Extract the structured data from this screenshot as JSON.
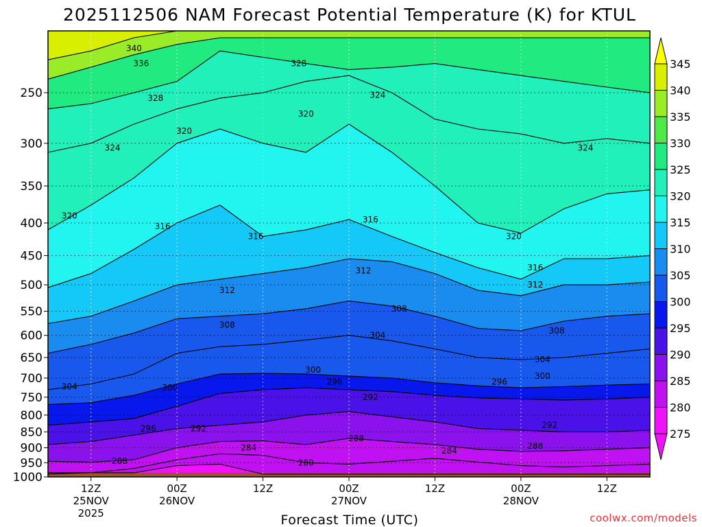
{
  "chart_data": {
    "type": "heatmap",
    "title": "2025112506 NAM Forecast Potential Temperature (K) for KTUL",
    "xlabel": "Forecast Time (UTC)",
    "ylabel": "",
    "credit": "coolwx.com/models",
    "y_axis": {
      "scale": "log-pressure",
      "range": [
        1000,
        200
      ],
      "ticks": [
        250,
        300,
        350,
        400,
        450,
        500,
        550,
        600,
        650,
        700,
        750,
        800,
        850,
        900,
        950,
        1000
      ],
      "grid": true
    },
    "x_axis": {
      "range_hours": [
        0,
        84
      ],
      "ticks": [
        {
          "hour": 6,
          "l1": "12Z",
          "l2": "25NOV",
          "l3": "2025"
        },
        {
          "hour": 18,
          "l1": "00Z",
          "l2": "26NOV",
          "l3": ""
        },
        {
          "hour": 30,
          "l1": "12Z",
          "l2": "",
          "l3": ""
        },
        {
          "hour": 42,
          "l1": "00Z",
          "l2": "27NOV",
          "l3": ""
        },
        {
          "hour": 54,
          "l1": "12Z",
          "l2": "",
          "l3": ""
        },
        {
          "hour": 66,
          "l1": "00Z",
          "l2": "28NOV",
          "l3": ""
        },
        {
          "hour": 78,
          "l1": "12Z",
          "l2": "",
          "l3": ""
        }
      ],
      "grid": true
    },
    "colorbar": {
      "levels": [
        345,
        340,
        335,
        330,
        325,
        320,
        315,
        310,
        305,
        300,
        295,
        290,
        285,
        280,
        275
      ],
      "colors": [
        "#ffff00",
        "#d8f000",
        "#9aec28",
        "#50e846",
        "#20ea80",
        "#22f0ba",
        "#22f4f0",
        "#14c8f8",
        "#1a8cf0",
        "#1858ec",
        "#0818ec",
        "#4a12e6",
        "#8a12ec",
        "#c012f0",
        "#f012f8"
      ]
    },
    "isentropes": [
      {
        "theta": 280,
        "pressures": [
          985,
          985,
          985,
          960,
          955,
          990,
          990,
          990,
          990,
          990,
          990,
          990,
          990,
          990,
          990
        ]
      },
      {
        "theta": 284,
        "pressures": [
          990,
          985,
          970,
          940,
          920,
          925,
          950,
          955,
          945,
          935,
          948,
          960,
          965,
          960,
          955
        ]
      },
      {
        "theta": 288,
        "pressures": [
          945,
          948,
          940,
          900,
          880,
          878,
          890,
          870,
          880,
          890,
          905,
          912,
          910,
          905,
          900
        ]
      },
      {
        "theta": 292,
        "pressures": [
          890,
          880,
          860,
          840,
          830,
          820,
          800,
          790,
          805,
          820,
          840,
          845,
          850,
          850,
          845
        ]
      },
      {
        "theta": 296,
        "pressures": [
          830,
          820,
          810,
          775,
          740,
          730,
          725,
          730,
          735,
          745,
          752,
          755,
          758,
          755,
          750
        ]
      },
      {
        "theta": 300,
        "pressures": [
          770,
          765,
          745,
          715,
          690,
          688,
          690,
          695,
          700,
          712,
          720,
          725,
          722,
          718,
          715
        ]
      },
      {
        "theta": 304,
        "pressures": [
          730,
          715,
          690,
          640,
          625,
          620,
          610,
          600,
          612,
          630,
          650,
          655,
          650,
          640,
          630
        ]
      },
      {
        "theta": 308,
        "pressures": [
          640,
          620,
          595,
          565,
          560,
          555,
          545,
          530,
          540,
          560,
          585,
          590,
          570,
          560,
          555
        ]
      },
      {
        "theta": 312,
        "pressures": [
          575,
          560,
          530,
          500,
          490,
          480,
          470,
          455,
          460,
          480,
          510,
          520,
          500,
          500,
          495
        ]
      },
      {
        "theta": 316,
        "pressures": [
          505,
          480,
          440,
          400,
          375,
          420,
          410,
          395,
          420,
          445,
          470,
          490,
          455,
          455,
          450
        ]
      },
      {
        "theta": 320,
        "pressures": [
          410,
          375,
          340,
          300,
          285,
          300,
          310,
          280,
          310,
          350,
          400,
          415,
          380,
          360,
          355
        ]
      },
      {
        "theta": 324,
        "pressures": [
          310,
          300,
          280,
          265,
          255,
          250,
          240,
          235,
          250,
          275,
          285,
          290,
          300,
          295,
          300
        ]
      },
      {
        "theta": 328,
        "pressures": [
          265,
          260,
          250,
          240,
          215,
          220,
          225,
          230,
          228,
          225,
          230,
          235,
          240,
          245,
          250
        ]
      },
      {
        "theta": 336,
        "pressures": [
          238,
          228,
          218,
          210,
          205,
          205,
          205,
          205,
          205,
          205,
          205,
          205,
          205,
          205,
          205
        ]
      },
      {
        "theta": 340,
        "pressures": [
          222,
          215,
          205,
          200,
          200,
          200,
          200,
          200,
          200,
          200,
          200,
          200,
          200,
          200,
          200
        ]
      }
    ],
    "isentrope_hours": [
      0,
      6,
      12,
      18,
      24,
      30,
      36,
      42,
      48,
      54,
      60,
      66,
      72,
      78,
      84
    ],
    "contour_labels": [
      {
        "text": "340",
        "hour": 12,
        "p": 213
      },
      {
        "text": "336",
        "hour": 13,
        "p": 225
      },
      {
        "text": "328",
        "hour": 15,
        "p": 255
      },
      {
        "text": "328",
        "hour": 35,
        "p": 225
      },
      {
        "text": "324",
        "hour": 9,
        "p": 305
      },
      {
        "text": "324",
        "hour": 46,
        "p": 252
      },
      {
        "text": "324",
        "hour": 75,
        "p": 305
      },
      {
        "text": "320",
        "hour": 3,
        "p": 390
      },
      {
        "text": "320",
        "hour": 19,
        "p": 287
      },
      {
        "text": "320",
        "hour": 36,
        "p": 270
      },
      {
        "text": "320",
        "hour": 65,
        "p": 420
      },
      {
        "text": "316",
        "hour": 16,
        "p": 405
      },
      {
        "text": "316",
        "hour": 29,
        "p": 420
      },
      {
        "text": "316",
        "hour": 45,
        "p": 395
      },
      {
        "text": "316",
        "hour": 68,
        "p": 470
      },
      {
        "text": "312",
        "hour": 25,
        "p": 510
      },
      {
        "text": "312",
        "hour": 44,
        "p": 475
      },
      {
        "text": "312",
        "hour": 68,
        "p": 500
      },
      {
        "text": "308",
        "hour": 25,
        "p": 578
      },
      {
        "text": "308",
        "hour": 49,
        "p": 545
      },
      {
        "text": "308",
        "hour": 71,
        "p": 590
      },
      {
        "text": "304",
        "hour": 3,
        "p": 722
      },
      {
        "text": "304",
        "hour": 46,
        "p": 600
      },
      {
        "text": "304",
        "hour": 69,
        "p": 655
      },
      {
        "text": "300",
        "hour": 17,
        "p": 725
      },
      {
        "text": "300",
        "hour": 37,
        "p": 680
      },
      {
        "text": "300",
        "hour": 69,
        "p": 695
      },
      {
        "text": "296",
        "hour": 14,
        "p": 840
      },
      {
        "text": "296",
        "hour": 40,
        "p": 710
      },
      {
        "text": "296",
        "hour": 63,
        "p": 710
      },
      {
        "text": "292",
        "hour": 21,
        "p": 840
      },
      {
        "text": "292",
        "hour": 45,
        "p": 750
      },
      {
        "text": "292",
        "hour": 70,
        "p": 830
      },
      {
        "text": "288",
        "hour": 10,
        "p": 945
      },
      {
        "text": "288",
        "hour": 43,
        "p": 870
      },
      {
        "text": "288",
        "hour": 68,
        "p": 895
      },
      {
        "text": "284",
        "hour": 28,
        "p": 900
      },
      {
        "text": "284",
        "hour": 56,
        "p": 910
      },
      {
        "text": "280",
        "hour": 36,
        "p": 950
      }
    ]
  }
}
